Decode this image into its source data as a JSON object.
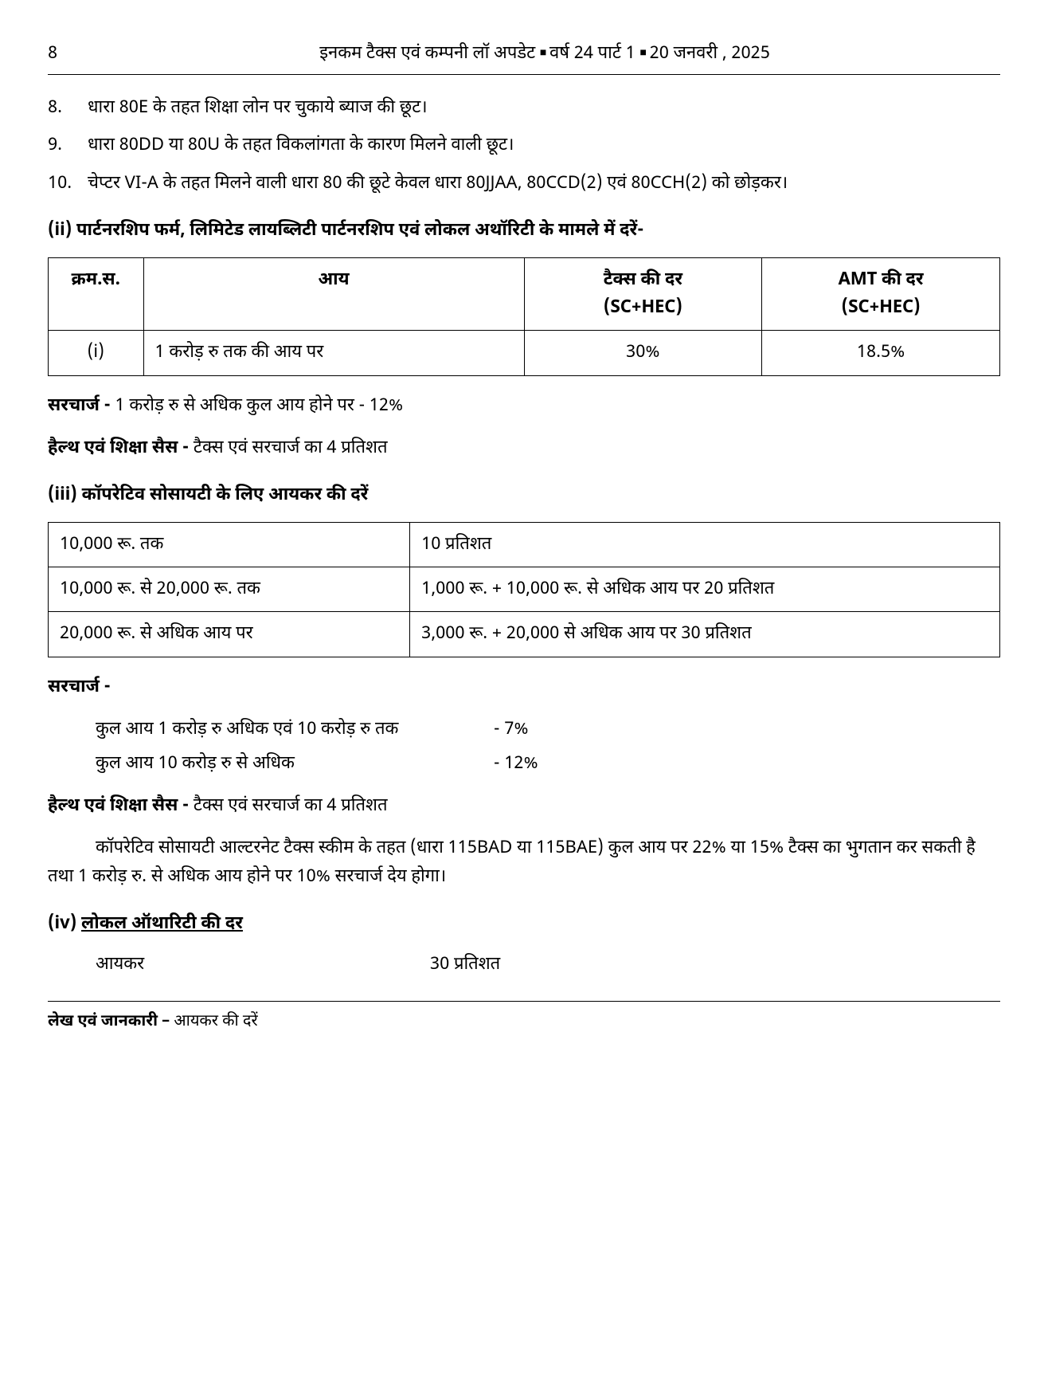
{
  "header": {
    "page_number": "8",
    "title_parts": {
      "a": "इनकम टैक्स एवं कम्पनी लॉ अपडेट",
      "b": "वर्ष 24 पार्ट 1",
      "c": "20 जनवरी , 2025"
    }
  },
  "list": {
    "items": [
      {
        "num": "8.",
        "text": "धारा 80E के तहत शिक्षा लोन पर चुकाये ब्याज की छूट।"
      },
      {
        "num": "9.",
        "text": "धारा 80DD या 80U के तहत विकलांगता के कारण मिलने वाली छूट।"
      },
      {
        "num": "10.",
        "text": "चेप्टर VI-A के तहत मिलने वाली धारा 80 की छूटे केवल धारा 80JJAA, 80CCD(2) एवं 80CCH(2) को छोड़कर।"
      }
    ]
  },
  "section_ii": {
    "heading": "(ii) पार्टनरशिप फर्म, लिमिटेड लायब्लिटी पार्टनरशिप एवं लोकल अथॉरिटी के मामले में दरें-",
    "table_headers": {
      "sn": "क्रम.स.",
      "income": "आय",
      "tax": "टैक्स की दर",
      "tax_sub": "(SC+HEC)",
      "amt": "AMT की दर",
      "amt_sub": "(SC+HEC)"
    },
    "table_rows": [
      {
        "sn": "(i)",
        "income": "1 करोड़ रु तक की आय पर",
        "tax": "30%",
        "amt": "18.5%"
      }
    ],
    "surcharge_label": "सरचार्ज -",
    "surcharge_text": " 1 करोड़ रु से अधिक कुल आय होने पर - 12%",
    "cess_label": "हैल्थ एवं शिक्षा सैस -",
    "cess_text": " टैक्स एवं सरचार्ज का 4 प्रतिशत"
  },
  "section_iii": {
    "heading": "(iii) कॉपरेटिव सोसायटी के लिए आयकर की दरें",
    "table_rows": [
      {
        "slab": "10,000 रू. तक",
        "rate": "10 प्रतिशत"
      },
      {
        "slab": "10,000 रू. से 20,000 रू. तक",
        "rate": "1,000 रू. + 10,000 रू. से अधिक आय पर 20 प्रतिशत"
      },
      {
        "slab": "20,000 रू. से अधिक आय पर",
        "rate": "3,000 रू. + 20,000 से अधिक आय पर 30  प्रतिशत"
      }
    ],
    "surcharge_heading": "सरचार्ज -",
    "surcharge_rows": [
      {
        "label": "कुल आय 1 करोड़ रु अधिक एवं 10 करोड़ रु तक",
        "val": "- 7%"
      },
      {
        "label": "कुल आय 10 करोड़ रु से अधिक",
        "val": "- 12%"
      }
    ],
    "cess_label": "हैल्थ एवं शिक्षा सैस -",
    "cess_text": " टैक्स एवं सरचार्ज का 4 प्रतिशत",
    "note": "कॉपरेटिव सोसायटी आल्टरनेट टैक्स स्कीम के तहत (धारा 115BAD या 115BAE) कुल आय पर 22% या 15% टैक्स का भुगतान कर सकती है तथा 1 करोड़ रु. से अधिक आय होने पर 10% सरचार्ज देय होगा।"
  },
  "section_iv": {
    "heading_prefix": "(iv) ",
    "heading_underline": "लोकल ऑथारिटी की दर",
    "row": {
      "label": "आयकर",
      "val": "30 प्रतिशत"
    }
  },
  "footer": {
    "bold": "लेख एवं जानकारी –",
    "rest": " आयकर की दरें"
  }
}
